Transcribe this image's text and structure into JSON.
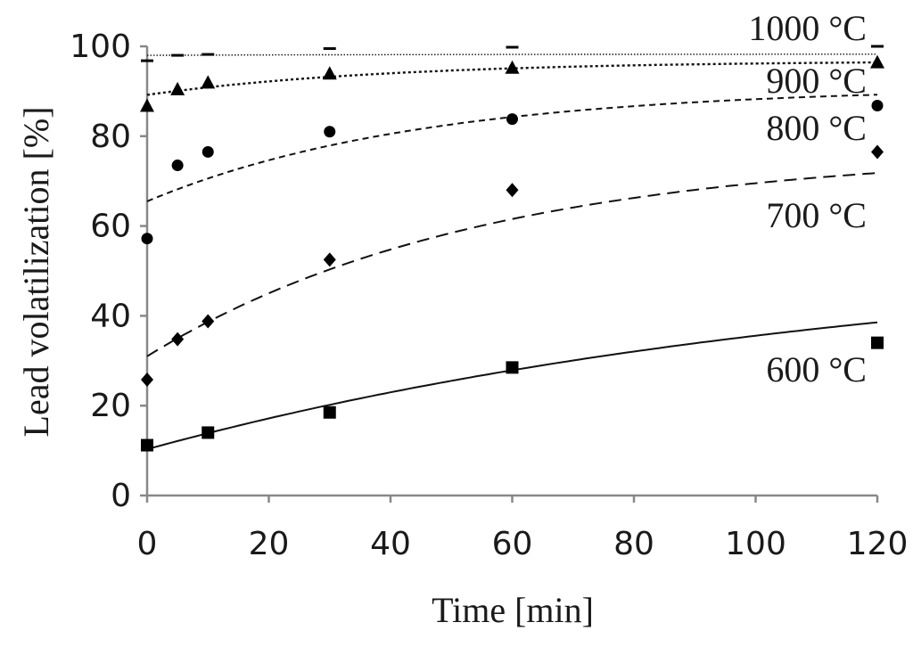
{
  "chart_data": {
    "type": "scatter",
    "title": "",
    "xlabel": "Time [min]",
    "ylabel": "Lead volatilization [%]",
    "xlim": [
      0,
      120
    ],
    "ylim": [
      0,
      100
    ],
    "xticks": [
      0,
      20,
      40,
      60,
      80,
      100,
      120
    ],
    "yticks": [
      0,
      20,
      40,
      60,
      80,
      100
    ],
    "grid": false,
    "series": [
      {
        "name": "600 °C",
        "marker": "square",
        "line_style": "solid",
        "x": [
          0,
          10,
          30,
          60,
          120
        ],
        "y": [
          11.2,
          14.0,
          18.5,
          28.5,
          34.0
        ],
        "fit": {
          "model": "a+(b-a)*(1-exp(-t/tau))",
          "a": 10.3,
          "b": 55.0,
          "tau": 120
        }
      },
      {
        "name": "700 °C",
        "marker": "diamond",
        "line_style": "long-dash",
        "x": [
          0,
          5,
          10,
          30,
          60,
          120
        ],
        "y": [
          25.8,
          34.8,
          38.8,
          52.5,
          68.0,
          76.5
        ],
        "fit": {
          "model": "a+(b-a)*(1-exp(-t/tau))",
          "a": 31.0,
          "b": 77.0,
          "tau": 55
        }
      },
      {
        "name": "800 °C",
        "marker": "circle",
        "line_style": "short-dash",
        "x": [
          0,
          5,
          10,
          30,
          60,
          120
        ],
        "y": [
          57.2,
          73.5,
          76.5,
          81.0,
          83.8,
          86.8
        ],
        "fit": {
          "model": "a+(b-a)*(1-exp(-t/tau))",
          "a": 65.5,
          "b": 91.0,
          "tau": 45
        }
      },
      {
        "name": "900 °C",
        "marker": "triangle",
        "line_style": "dotted",
        "x": [
          0,
          5,
          10,
          30,
          60,
          120
        ],
        "y": [
          86.8,
          90.5,
          92.0,
          94.0,
          95.3,
          96.5
        ],
        "fit": {
          "model": "a+(b-a)*(1-exp(-t/tau))",
          "a": 89.2,
          "b": 96.8,
          "tau": 40
        }
      },
      {
        "name": "1000 °C",
        "marker": "dash",
        "line_style": "fine-dotted",
        "x": [
          0,
          5,
          10,
          30,
          60,
          120
        ],
        "y": [
          96.8,
          98.0,
          98.2,
          99.5,
          99.8,
          100.0
        ],
        "fit": {
          "model": "a+(b-a)*(1-exp(-t/tau))",
          "a": 98.0,
          "b": 98.3,
          "tau": 60
        }
      }
    ]
  }
}
